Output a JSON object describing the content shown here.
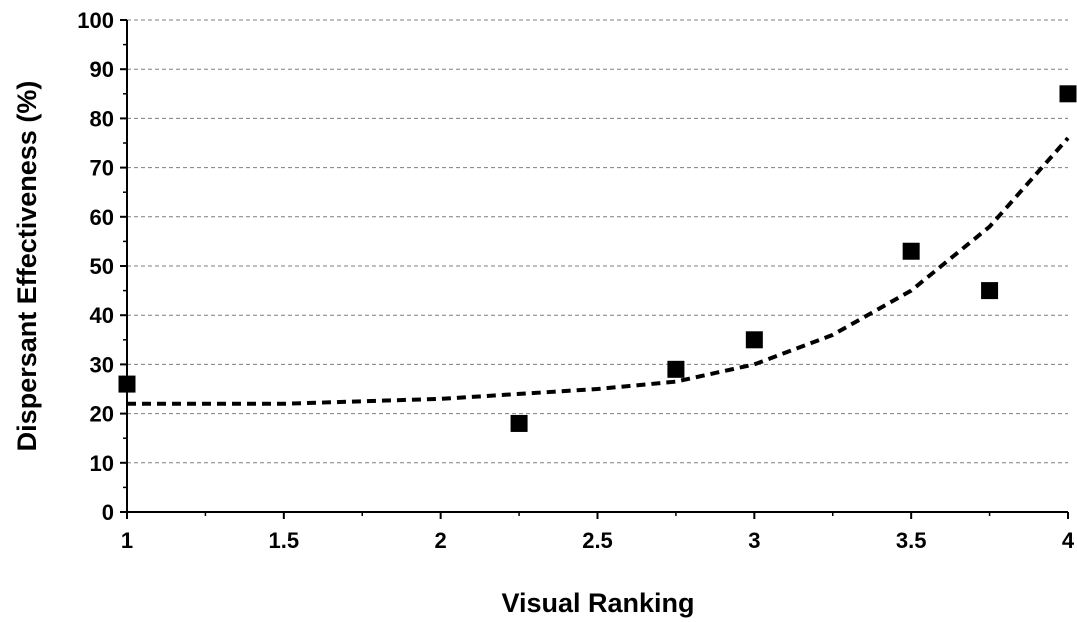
{
  "chart_data": {
    "type": "scatter",
    "xlabel": "Visual Ranking",
    "ylabel": "Dispersant Effectiveness (%)",
    "xlim": [
      1,
      4
    ],
    "ylim": [
      0,
      100
    ],
    "x_ticks": [
      "1",
      "1.5",
      "2",
      "2.5",
      "3",
      "3.5",
      "4"
    ],
    "y_ticks": [
      "0",
      "10",
      "20",
      "30",
      "40",
      "50",
      "60",
      "70",
      "80",
      "90",
      "100"
    ],
    "grid": "horizontal dashed",
    "series": [
      {
        "marker": "square",
        "color": "#000000",
        "points": [
          {
            "x": 1,
            "y": 26
          },
          {
            "x": 2.25,
            "y": 18
          },
          {
            "x": 2.75,
            "y": 29
          },
          {
            "x": 3,
            "y": 35
          },
          {
            "x": 3.5,
            "y": 53
          },
          {
            "x": 3.75,
            "y": 45
          },
          {
            "x": 4,
            "y": 85
          }
        ]
      }
    ],
    "trendline": {
      "style": "dashed",
      "color": "#000000",
      "points": [
        {
          "x": 1,
          "y": 22
        },
        {
          "x": 1.5,
          "y": 22
        },
        {
          "x": 2,
          "y": 23
        },
        {
          "x": 2.25,
          "y": 24
        },
        {
          "x": 2.5,
          "y": 25
        },
        {
          "x": 2.75,
          "y": 26.5
        },
        {
          "x": 3,
          "y": 30
        },
        {
          "x": 3.25,
          "y": 36
        },
        {
          "x": 3.5,
          "y": 45
        },
        {
          "x": 3.75,
          "y": 58
        },
        {
          "x": 4,
          "y": 76
        }
      ]
    }
  }
}
